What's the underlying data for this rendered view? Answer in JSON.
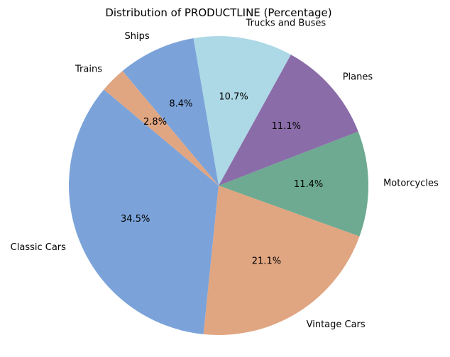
{
  "chart_data": {
    "type": "pie",
    "title": "Distribution of PRODUCTLINE (Percentage)",
    "start_angle_deg": 140,
    "direction": "counterclockwise",
    "slices": [
      {
        "label": "Classic Cars",
        "value": 34.5,
        "value_label": "34.5%",
        "color": "#7ba3d9"
      },
      {
        "label": "Vintage Cars",
        "value": 21.1,
        "value_label": "21.1%",
        "color": "#e0a581"
      },
      {
        "label": "Motorcycles",
        "value": 11.4,
        "value_label": "11.4%",
        "color": "#6daa91"
      },
      {
        "label": "Planes",
        "value": 11.1,
        "value_label": "11.1%",
        "color": "#8a6ca8"
      },
      {
        "label": "Trucks and Buses",
        "value": 10.7,
        "value_label": "10.7%",
        "color": "#add8e6"
      },
      {
        "label": "Ships",
        "value": 8.4,
        "value_label": "8.4%",
        "color": "#7ba3d9"
      },
      {
        "label": "Trains",
        "value": 2.8,
        "value_label": "2.8%",
        "color": "#e0a581"
      }
    ]
  }
}
